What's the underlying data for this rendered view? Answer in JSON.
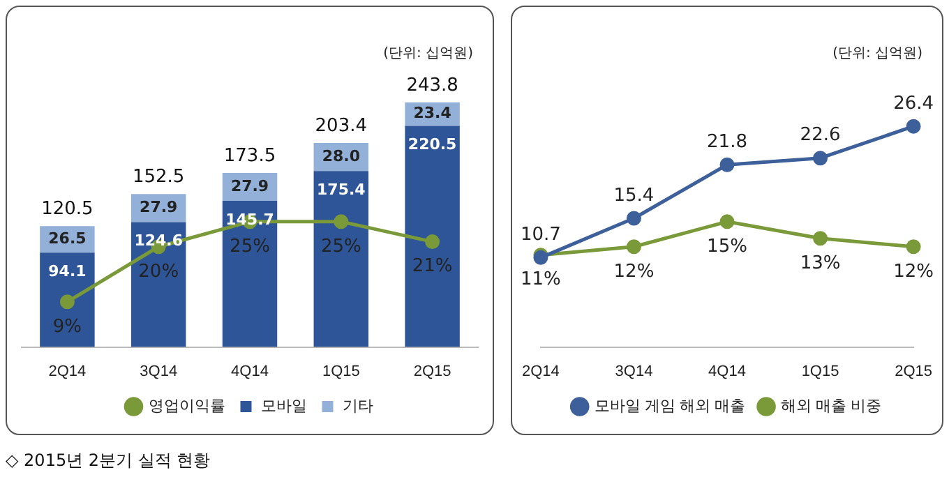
{
  "chart_data": [
    {
      "type": "bar",
      "categories": [
        "2Q14",
        "3Q14",
        "4Q14",
        "1Q15",
        "2Q15"
      ],
      "series": [
        {
          "name": "모바일",
          "color": "#2e5597",
          "values": [
            94.1,
            124.6,
            145.7,
            175.4,
            220.5
          ],
          "value_labels": [
            "94.1",
            "124.6",
            "145.7",
            "175.4",
            "220.5"
          ]
        },
        {
          "name": "기타",
          "color": "#93b0d8",
          "values": [
            26.5,
            27.9,
            27.9,
            28.0,
            23.4
          ],
          "value_labels": [
            "26.5",
            "27.9",
            "27.9",
            "28.0",
            "23.4"
          ]
        },
        {
          "name": "영업이익률",
          "color": "#7a9a3a",
          "type": "line",
          "axis": "y2",
          "values": [
            9,
            20,
            25,
            25,
            21
          ],
          "value_labels": [
            "9%",
            "20%",
            "25%",
            "25%",
            "21%"
          ]
        }
      ],
      "stacked": true,
      "totals": [
        "120.5",
        "152.5",
        "173.5",
        "203.4",
        "243.8"
      ],
      "tick_labels": "x",
      "legend": "bottom",
      "marker": "circle",
      "annotations": [
        "(단위: 십억원)",
        "◇ 2015년 2분기 실적 현황"
      ]
    },
    {
      "type": "line",
      "categories": [
        "2Q14",
        "3Q14",
        "4Q14",
        "1Q15",
        "2Q15"
      ],
      "series": [
        {
          "name": "모바일 게임 해외 매출",
          "color": "#3d5f9a",
          "values": [
            10.7,
            15.4,
            21.8,
            22.6,
            26.4
          ],
          "value_labels": [
            "10.7",
            "15.4",
            "21.8",
            "22.6",
            "26.4"
          ]
        },
        {
          "name": "해외 매출 비중",
          "color": "#7a9a3a",
          "axis": "y2",
          "values": [
            11,
            12,
            15,
            13,
            12
          ],
          "value_labels": [
            "11%",
            "12%",
            "15%",
            "13%",
            "12%"
          ]
        }
      ],
      "tick_labels": "x",
      "legend": "bottom",
      "marker": "circle",
      "annotations": [
        "(단위: 십억원)"
      ]
    }
  ]
}
